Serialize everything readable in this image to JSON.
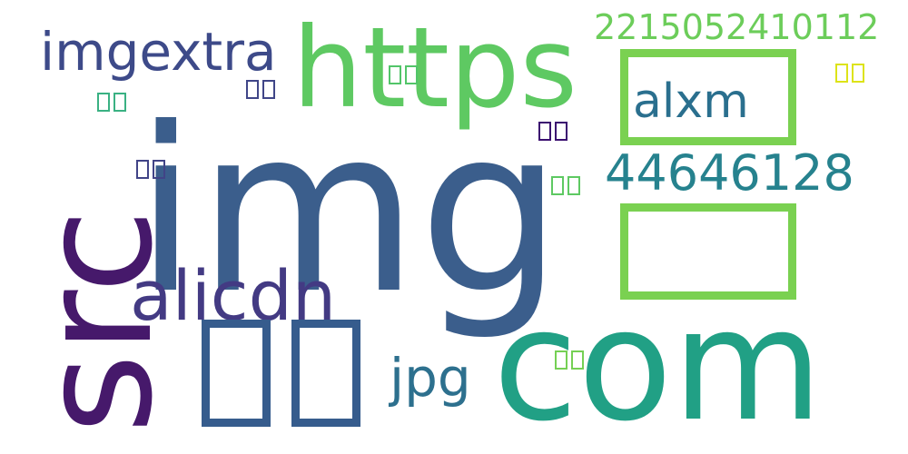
{
  "words": {
    "img": {
      "text": "img",
      "color": "#3b5e8c"
    },
    "https": {
      "text": "https",
      "color": "#5ec962"
    },
    "com": {
      "text": "com",
      "color": "#21a085"
    },
    "src": {
      "text": "src",
      "color": "#46196b"
    },
    "alicdn": {
      "text": "alicdn",
      "color": "#433a83"
    },
    "imgextra": {
      "text": "imgextra",
      "color": "#3d4a89"
    },
    "alxm": {
      "text": "alxm",
      "color": "#2a6f8e"
    },
    "n44646128": {
      "text": "44646128",
      "color": "#26828e"
    },
    "long_number": {
      "text": "2215052410112",
      "color": "#6ccd5a"
    },
    "jpg": {
      "text": "jpg",
      "color": "#2d708e"
    }
  },
  "glyph_boxes": {
    "big_pair_color": "#365c8d",
    "vertical_pair_color": "#7ad151",
    "small_pairs": [
      {
        "id": "p1",
        "color": "#3ab183"
      },
      {
        "id": "p2",
        "color": "#404688"
      },
      {
        "id": "p3",
        "color": "#52c569"
      },
      {
        "id": "p4",
        "color": "#dde318"
      },
      {
        "id": "p5",
        "color": "#3b0f70"
      },
      {
        "id": "p6",
        "color": "#414487"
      },
      {
        "id": "p7",
        "color": "#5ec962"
      },
      {
        "id": "p8",
        "color": "#75d054"
      }
    ]
  }
}
